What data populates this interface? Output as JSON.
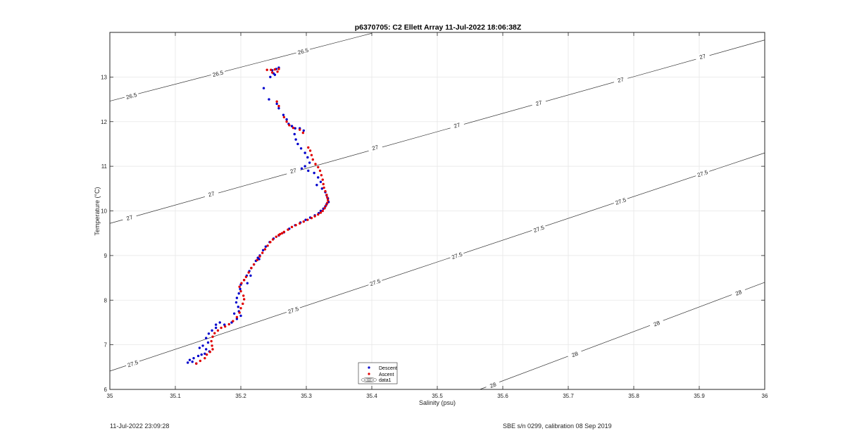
{
  "footer": {
    "left": "11-Jul-2022 23:09:28",
    "right": "SBE s/n 0299, calibration 08 Sep 2019"
  },
  "chart_data": {
    "type": "scatter",
    "title": "p6370705: C2 Ellett Array 11-Jul-2022 18:06:38Z",
    "xlabel": "Salinity (psu)",
    "ylabel": "Temperature (°C)",
    "xlim": [
      35,
      36
    ],
    "ylim": [
      6,
      14
    ],
    "xticks": [
      35,
      35.1,
      35.2,
      35.3,
      35.4,
      35.5,
      35.6,
      35.7,
      35.8,
      35.9,
      36
    ],
    "xtick_labels": [
      "35",
      "35.1",
      "35.2",
      "35.3",
      "35.4",
      "35.5",
      "35.6",
      "35.7",
      "35.8",
      "35.9",
      "36"
    ],
    "yticks": [
      6,
      7,
      8,
      9,
      10,
      11,
      12,
      13
    ],
    "ytick_labels": [
      "6",
      "7",
      "8",
      "9",
      "10",
      "11",
      "12",
      "13"
    ],
    "grid": true,
    "legend_position": "bottom-center",
    "legend": [
      {
        "name": "Descent",
        "color": "#0000cc",
        "marker": "dot"
      },
      {
        "name": "Ascent",
        "color": "#e00000",
        "marker": "dot"
      },
      {
        "name": "data1",
        "color": "#333333",
        "marker": "contour"
      }
    ],
    "series": [
      {
        "name": "Descent",
        "color": "#0000cc",
        "points": [
          [
            35.258,
            13.21
          ],
          [
            35.254,
            13.18
          ],
          [
            35.248,
            13.15
          ],
          [
            35.25,
            13.08
          ],
          [
            35.245,
            13.0
          ],
          [
            35.252,
            13.05
          ],
          [
            35.235,
            12.75
          ],
          [
            35.243,
            12.5
          ],
          [
            35.255,
            12.4
          ],
          [
            35.258,
            12.3
          ],
          [
            35.265,
            12.15
          ],
          [
            35.27,
            12.05
          ],
          [
            35.273,
            11.95
          ],
          [
            35.278,
            11.9
          ],
          [
            35.283,
            11.85
          ],
          [
            35.29,
            11.85
          ],
          [
            35.296,
            11.8
          ],
          [
            35.282,
            11.72
          ],
          [
            35.284,
            11.6
          ],
          [
            35.287,
            11.5
          ],
          [
            35.292,
            11.4
          ],
          [
            35.298,
            11.3
          ],
          [
            35.302,
            11.2
          ],
          [
            35.305,
            11.08
          ],
          [
            35.298,
            11.0
          ],
          [
            35.293,
            10.95
          ],
          [
            35.303,
            10.9
          ],
          [
            35.312,
            10.85
          ],
          [
            35.318,
            10.75
          ],
          [
            35.322,
            10.65
          ],
          [
            35.316,
            10.58
          ],
          [
            35.324,
            10.5
          ],
          [
            35.329,
            10.42
          ],
          [
            35.331,
            10.35
          ],
          [
            35.333,
            10.28
          ],
          [
            35.334,
            10.2
          ],
          [
            35.331,
            10.15
          ],
          [
            35.329,
            10.1
          ],
          [
            35.326,
            10.05
          ],
          [
            35.322,
            10.0
          ],
          [
            35.319,
            9.95
          ],
          [
            35.313,
            9.9
          ],
          [
            35.306,
            9.85
          ],
          [
            35.299,
            9.8
          ],
          [
            35.291,
            9.74
          ],
          [
            35.283,
            9.68
          ],
          [
            35.274,
            9.6
          ],
          [
            35.266,
            9.52
          ],
          [
            35.258,
            9.45
          ],
          [
            35.25,
            9.38
          ],
          [
            35.244,
            9.3
          ],
          [
            35.238,
            9.2
          ],
          [
            35.234,
            9.12
          ],
          [
            35.229,
            9.0
          ],
          [
            35.226,
            8.95
          ],
          [
            35.223,
            8.88
          ],
          [
            35.22,
            8.8
          ],
          [
            35.216,
            8.72
          ],
          [
            35.213,
            8.65
          ],
          [
            35.209,
            8.55
          ],
          [
            35.205,
            8.45
          ],
          [
            35.2,
            8.35
          ],
          [
            35.199,
            8.25
          ],
          [
            35.197,
            8.15
          ],
          [
            35.194,
            8.05
          ],
          [
            35.193,
            7.95
          ],
          [
            35.196,
            7.85
          ],
          [
            35.197,
            7.75
          ],
          [
            35.19,
            7.7
          ],
          [
            35.2,
            7.65
          ],
          [
            35.194,
            7.58
          ],
          [
            35.186,
            7.5
          ],
          [
            35.175,
            7.45
          ],
          [
            35.168,
            7.5
          ],
          [
            35.162,
            7.45
          ],
          [
            35.162,
            7.38
          ],
          [
            35.156,
            7.32
          ],
          [
            35.151,
            7.25
          ],
          [
            35.147,
            7.15
          ],
          [
            35.15,
            7.05
          ],
          [
            35.142,
            6.98
          ],
          [
            35.137,
            6.93
          ],
          [
            35.147,
            6.9
          ],
          [
            35.152,
            6.85
          ],
          [
            35.145,
            6.8
          ],
          [
            35.135,
            6.75
          ],
          [
            35.128,
            6.7
          ],
          [
            35.122,
            6.66
          ],
          [
            35.119,
            6.6
          ],
          [
            35.126,
            6.62
          ],
          [
            35.132,
            6.58
          ],
          [
            35.14,
            6.78
          ],
          [
            35.21,
            8.38
          ],
          [
            35.215,
            8.55
          ],
          [
            35.228,
            8.92
          ]
        ]
      },
      {
        "name": "Ascent",
        "color": "#e00000",
        "points": [
          [
            35.24,
            13.16
          ],
          [
            35.246,
            13.16
          ],
          [
            35.252,
            13.17
          ],
          [
            35.258,
            13.18
          ],
          [
            35.256,
            13.12
          ],
          [
            35.248,
            13.1
          ],
          [
            35.255,
            12.45
          ],
          [
            35.258,
            12.35
          ],
          [
            35.266,
            12.1
          ],
          [
            35.27,
            12.0
          ],
          [
            35.274,
            11.92
          ],
          [
            35.28,
            11.86
          ],
          [
            35.29,
            11.82
          ],
          [
            35.295,
            11.75
          ],
          [
            35.303,
            11.42
          ],
          [
            35.306,
            11.35
          ],
          [
            35.308,
            11.25
          ],
          [
            35.31,
            11.15
          ],
          [
            35.314,
            11.05
          ],
          [
            35.318,
            10.98
          ],
          [
            35.321,
            10.9
          ],
          [
            35.323,
            10.8
          ],
          [
            35.325,
            10.7
          ],
          [
            35.326,
            10.6
          ],
          [
            35.327,
            10.52
          ],
          [
            35.329,
            10.44
          ],
          [
            35.331,
            10.36
          ],
          [
            35.332,
            10.3
          ],
          [
            35.333,
            10.24
          ],
          [
            35.332,
            10.18
          ],
          [
            35.33,
            10.12
          ],
          [
            35.328,
            10.06
          ],
          [
            35.325,
            10.0
          ],
          [
            35.322,
            9.96
          ],
          [
            35.318,
            9.92
          ],
          [
            35.313,
            9.88
          ],
          [
            35.308,
            9.84
          ],
          [
            35.302,
            9.8
          ],
          [
            35.296,
            9.76
          ],
          [
            35.29,
            9.72
          ],
          [
            35.284,
            9.68
          ],
          [
            35.278,
            9.64
          ],
          [
            35.272,
            9.58
          ],
          [
            35.266,
            9.53
          ],
          [
            35.26,
            9.48
          ],
          [
            35.254,
            9.42
          ],
          [
            35.249,
            9.36
          ],
          [
            35.245,
            9.3
          ],
          [
            35.241,
            9.22
          ],
          [
            35.237,
            9.14
          ],
          [
            35.233,
            9.06
          ],
          [
            35.229,
            8.98
          ],
          [
            35.225,
            8.9
          ],
          [
            35.22,
            8.8
          ],
          [
            35.216,
            8.72
          ],
          [
            35.212,
            8.62
          ],
          [
            35.208,
            8.52
          ],
          [
            35.205,
            8.45
          ],
          [
            35.201,
            8.38
          ],
          [
            35.198,
            8.3
          ],
          [
            35.2,
            8.2
          ],
          [
            35.204,
            8.1
          ],
          [
            35.205,
            8.02
          ],
          [
            35.203,
            7.92
          ],
          [
            35.2,
            7.82
          ],
          [
            35.198,
            7.72
          ],
          [
            35.194,
            7.62
          ],
          [
            35.188,
            7.53
          ],
          [
            35.182,
            7.46
          ],
          [
            35.176,
            7.41
          ],
          [
            35.17,
            7.38
          ],
          [
            35.165,
            7.32
          ],
          [
            35.16,
            7.26
          ],
          [
            35.157,
            7.18
          ],
          [
            35.155,
            7.08
          ],
          [
            35.156,
            6.98
          ],
          [
            35.157,
            6.9
          ],
          [
            35.153,
            6.84
          ],
          [
            35.148,
            6.78
          ],
          [
            35.145,
            6.7
          ],
          [
            35.138,
            6.64
          ],
          [
            35.132,
            6.58
          ],
          [
            35.258,
            9.46
          ],
          [
            35.263,
            9.5
          ]
        ]
      }
    ],
    "contours": [
      {
        "label": "26.5",
        "color": "#333333",
        "line": [
          [
            35.0,
            12.46
          ],
          [
            35.4,
            13.98
          ]
        ],
        "labels_at": [
          [
            35.033,
            12.58
          ],
          [
            35.165,
            13.08
          ],
          [
            35.295,
            13.58
          ]
        ]
      },
      {
        "label": "27",
        "color": "#333333",
        "line": [
          [
            35.0,
            9.72
          ],
          [
            36.0,
            13.83
          ]
        ],
        "labels_at": [
          [
            35.03,
            9.85
          ],
          [
            35.155,
            10.38
          ],
          [
            35.28,
            10.9
          ],
          [
            35.405,
            11.42
          ],
          [
            35.53,
            11.92
          ],
          [
            35.655,
            12.42
          ],
          [
            35.78,
            12.94
          ],
          [
            35.905,
            13.46
          ]
        ]
      },
      {
        "label": "27.5",
        "color": "#333333",
        "line": [
          [
            35.0,
            6.41
          ],
          [
            36.0,
            11.3
          ]
        ],
        "labels_at": [
          [
            35.035,
            6.58
          ],
          [
            35.28,
            7.78
          ],
          [
            35.405,
            8.4
          ],
          [
            35.53,
            9.0
          ],
          [
            35.655,
            9.6
          ],
          [
            35.78,
            10.22
          ],
          [
            35.905,
            10.84
          ]
        ]
      },
      {
        "label": "28",
        "color": "#333333",
        "line": [
          [
            35.565,
            6.0
          ],
          [
            36.0,
            8.4
          ]
        ],
        "labels_at": [
          [
            35.585,
            6.1
          ],
          [
            35.71,
            6.79
          ],
          [
            35.835,
            7.48
          ],
          [
            35.96,
            8.17
          ]
        ]
      }
    ]
  }
}
